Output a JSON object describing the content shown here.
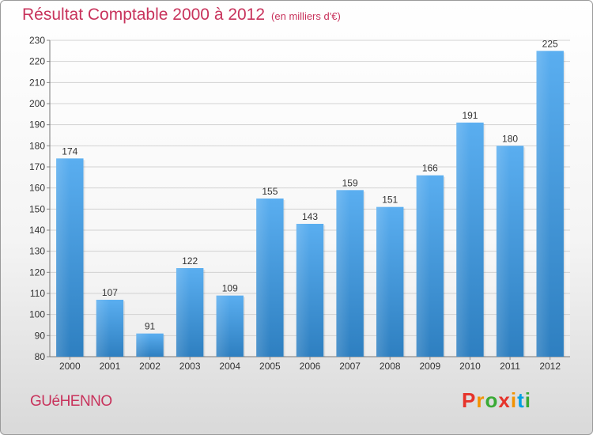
{
  "title": "Résultat Comptable 2000 à 2012",
  "subtitle": "(en milliers d'€)",
  "commune": "GUéHENNO",
  "logo": {
    "letters": [
      "P",
      "r",
      "o",
      "x",
      "i",
      "t",
      "i"
    ],
    "colors": [
      "#e6332a",
      "#f39200",
      "#3aaa35",
      "#e6332a",
      "#f39200",
      "#00a0e3",
      "#3aaa35"
    ]
  },
  "chart_data": {
    "type": "bar",
    "categories": [
      "2000",
      "2001",
      "2002",
      "2003",
      "2004",
      "2005",
      "2006",
      "2007",
      "2008",
      "2009",
      "2010",
      "2011",
      "2012"
    ],
    "values": [
      174,
      107,
      91,
      122,
      109,
      155,
      143,
      159,
      151,
      166,
      191,
      180,
      225
    ],
    "ylim": [
      80,
      230
    ],
    "yticks": [
      80,
      90,
      100,
      110,
      120,
      130,
      140,
      150,
      160,
      170,
      180,
      190,
      200,
      210,
      220,
      230
    ],
    "grid": true,
    "bar_color": "#3d8fd6"
  }
}
